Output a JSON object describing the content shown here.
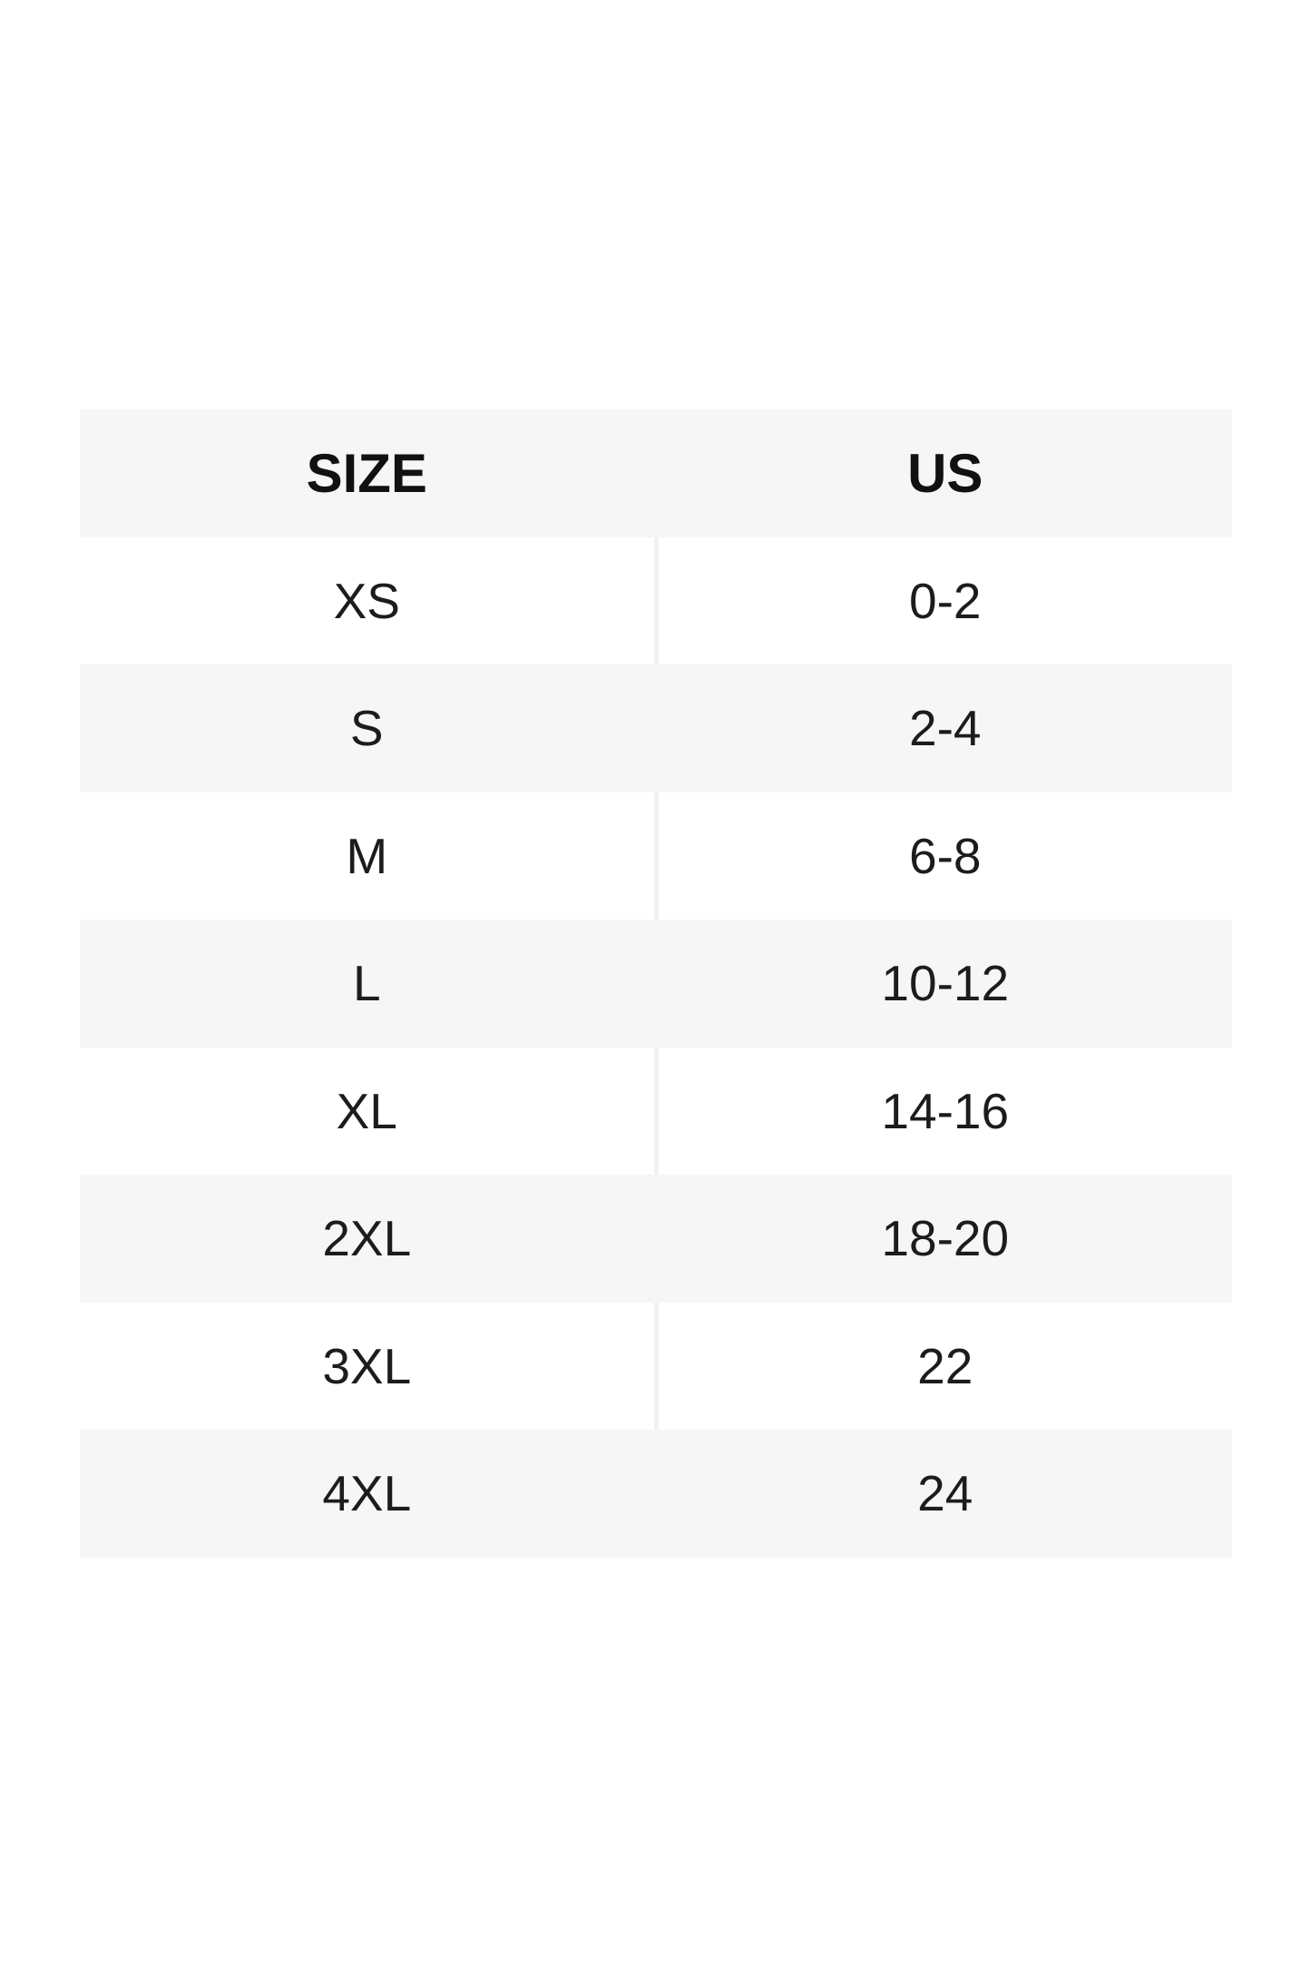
{
  "page": {
    "background": "#ffffff"
  },
  "size_chart": {
    "columns": [
      {
        "label": "SIZE"
      },
      {
        "label": "US"
      }
    ],
    "rows": [
      {
        "size": "XS",
        "us": "0-2"
      },
      {
        "size": "S",
        "us": "2-4"
      },
      {
        "size": "M",
        "us": "6-8"
      },
      {
        "size": "L",
        "us": "10-12"
      },
      {
        "size": "XL",
        "us": "14-16"
      },
      {
        "size": "2XL",
        "us": "18-20"
      },
      {
        "size": "3XL",
        "us": "22"
      },
      {
        "size": "4XL",
        "us": "24"
      }
    ],
    "colors": {
      "stripe_row": "#f6f6f6",
      "white_row": "#ffffff",
      "column_divider": "#f2f2f2",
      "header_text": "#111111",
      "cell_text": "#1c1c1c"
    }
  },
  "chart_data": {
    "type": "table",
    "title": "",
    "columns": [
      "SIZE",
      "US"
    ],
    "rows": [
      [
        "XS",
        "0-2"
      ],
      [
        "S",
        "2-4"
      ],
      [
        "M",
        "6-8"
      ],
      [
        "L",
        "10-12"
      ],
      [
        "XL",
        "14-16"
      ],
      [
        "2XL",
        "18-20"
      ],
      [
        "3XL",
        "22"
      ],
      [
        "4XL",
        "24"
      ]
    ],
    "layout": {
      "header_background": "#f6f6f6",
      "row_striping": "alternating white / #f6f6f6 starting white after header",
      "grid": "no outer border, faint center column divider over white rows only"
    }
  }
}
